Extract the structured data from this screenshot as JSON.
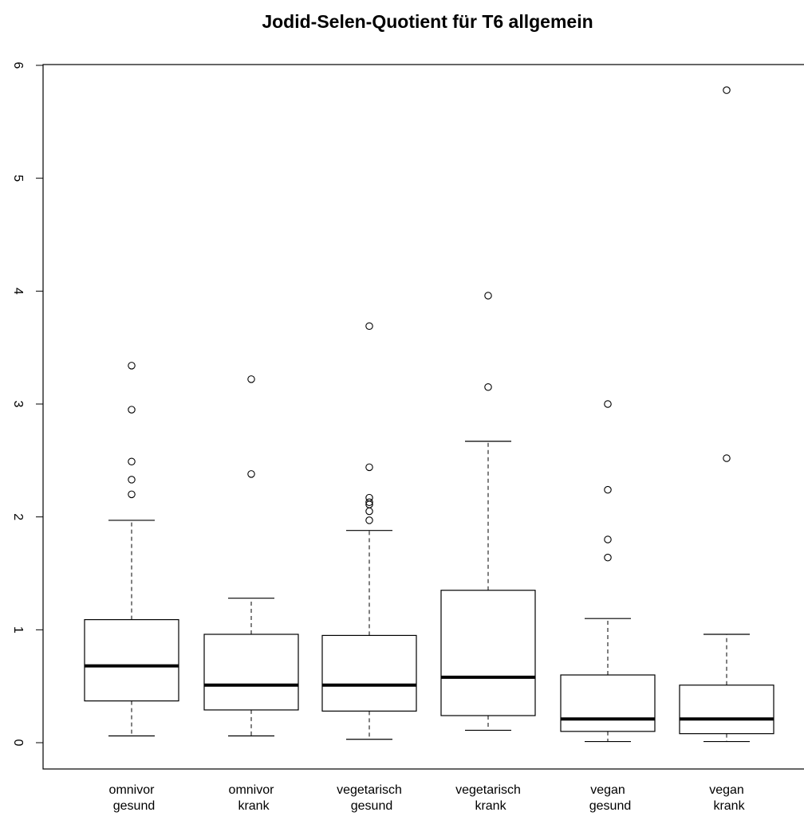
{
  "chart_data": {
    "type": "boxplot",
    "title": "Jodid-Selen-Quotient für T6 allgemein",
    "xlabel": "",
    "ylabel": "",
    "ylim": [
      0,
      6
    ],
    "yticks": [
      0,
      1,
      2,
      3,
      4,
      5,
      6
    ],
    "grid": false,
    "categories": [
      [
        "omnivor",
        "gesund"
      ],
      [
        "omnivor",
        "krank"
      ],
      [
        "vegetarisch",
        "gesund"
      ],
      [
        "vegetarisch",
        "krank"
      ],
      [
        "vegan",
        "gesund"
      ],
      [
        "vegan",
        "krank"
      ]
    ],
    "boxes": [
      {
        "whisker_low": 0.06,
        "q1": 0.37,
        "median": 0.68,
        "q3": 1.09,
        "whisker_high": 1.97,
        "outliers": [
          2.2,
          2.33,
          2.49,
          2.95,
          3.34
        ]
      },
      {
        "whisker_low": 0.06,
        "q1": 0.29,
        "median": 0.51,
        "q3": 0.96,
        "whisker_high": 1.28,
        "outliers": [
          2.38,
          3.22
        ]
      },
      {
        "whisker_low": 0.03,
        "q1": 0.28,
        "median": 0.51,
        "q3": 0.95,
        "whisker_high": 1.88,
        "outliers": [
          1.97,
          2.05,
          2.11,
          2.13,
          2.17,
          2.44,
          3.69
        ]
      },
      {
        "whisker_low": 0.11,
        "q1": 0.24,
        "median": 0.58,
        "q3": 1.35,
        "whisker_high": 2.67,
        "outliers": [
          3.15,
          3.96
        ]
      },
      {
        "whisker_low": 0.01,
        "q1": 0.1,
        "median": 0.21,
        "q3": 0.6,
        "whisker_high": 1.1,
        "outliers": [
          1.64,
          1.8,
          2.24,
          3.0
        ]
      },
      {
        "whisker_low": 0.01,
        "q1": 0.08,
        "median": 0.21,
        "q3": 0.51,
        "whisker_high": 0.96,
        "outliers": [
          2.52,
          5.78
        ]
      }
    ]
  }
}
